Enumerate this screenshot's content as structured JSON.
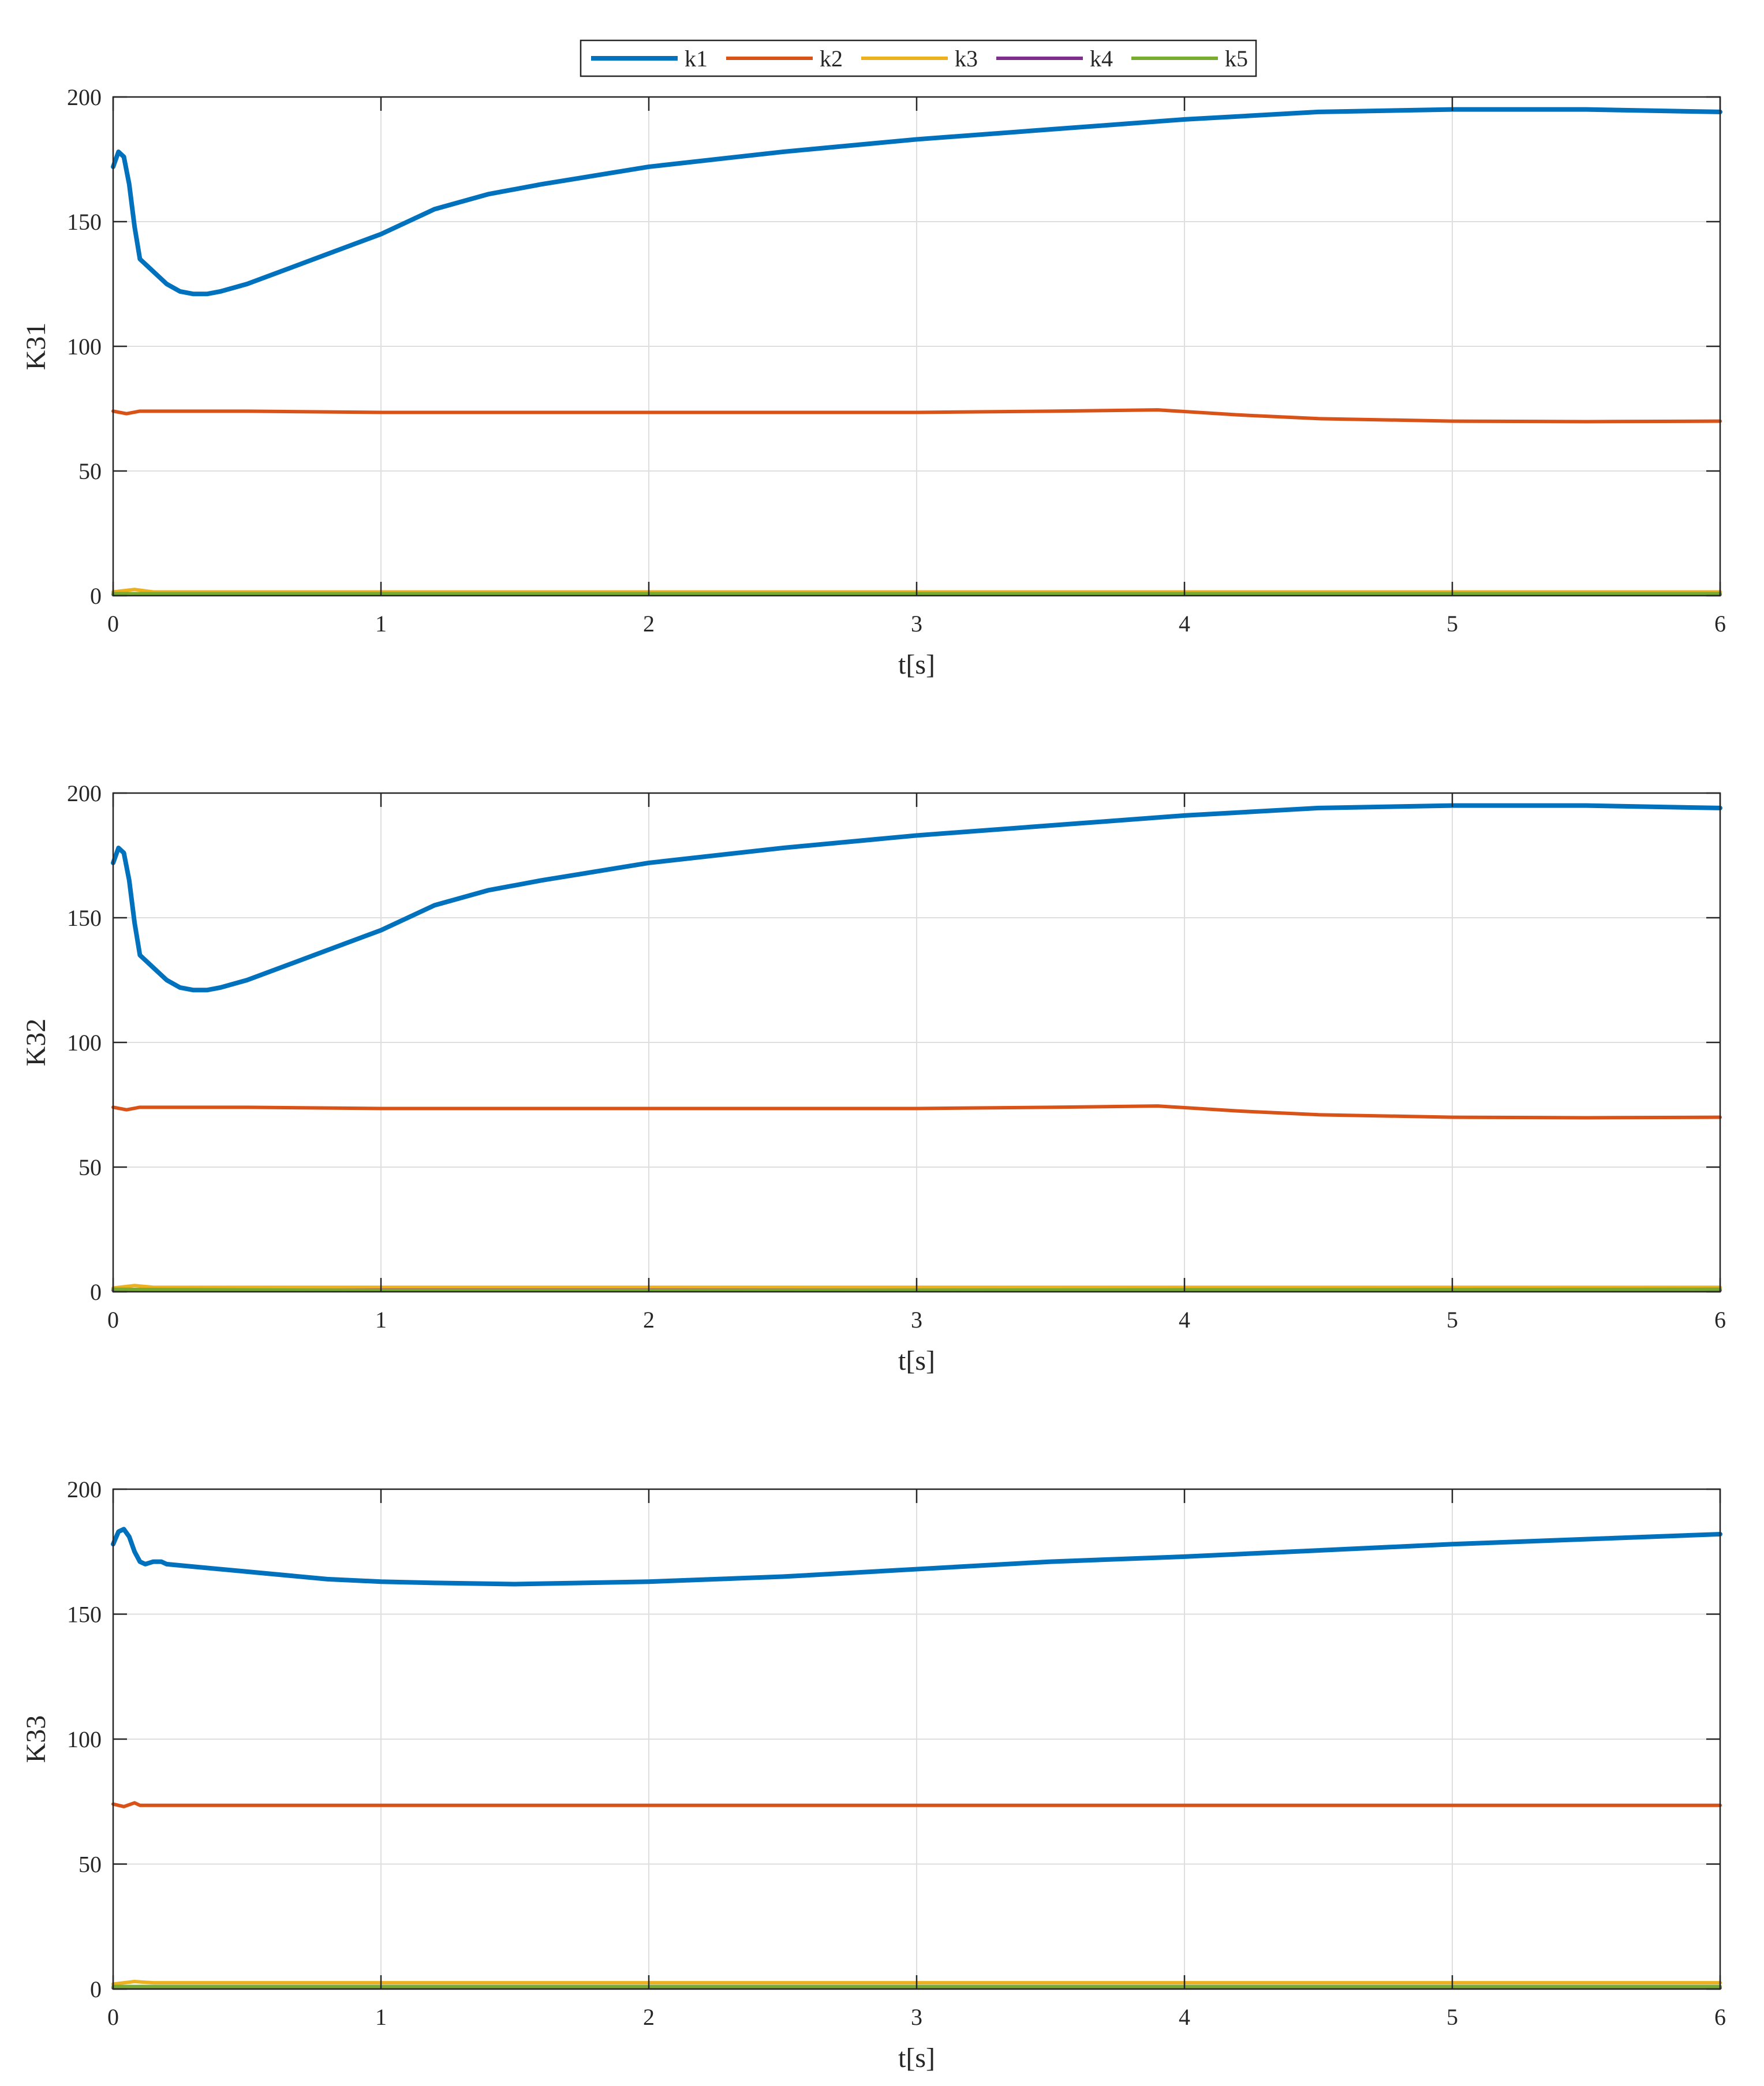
{
  "legend": {
    "entries": [
      {
        "label": "k1",
        "color": "#0072BD"
      },
      {
        "label": "k2",
        "color": "#D95319"
      },
      {
        "label": "k3",
        "color": "#EDB120"
      },
      {
        "label": "k4",
        "color": "#7E2F8E"
      },
      {
        "label": "k5",
        "color": "#77AC30"
      }
    ],
    "placement": "top-center"
  },
  "chart_data": [
    {
      "type": "line",
      "xlabel": "t[s]",
      "ylabel": "K31",
      "xlim": [
        0,
        6
      ],
      "ylim": [
        0,
        200
      ],
      "xticks": [
        "0",
        "1",
        "2",
        "3",
        "4",
        "5",
        "6"
      ],
      "yticks": [
        "0",
        "50",
        "100",
        "150",
        "200"
      ],
      "grid": true,
      "series": [
        {
          "name": "k1",
          "color": "#0072BD",
          "x": [
            0,
            0.02,
            0.04,
            0.06,
            0.08,
            0.1,
            0.15,
            0.2,
            0.25,
            0.3,
            0.35,
            0.4,
            0.5,
            0.6,
            0.8,
            1.0,
            1.1,
            1.2,
            1.4,
            1.6,
            2.0,
            2.5,
            3.0,
            3.5,
            4.0,
            4.5,
            5.0,
            5.5,
            6.0
          ],
          "y": [
            172,
            178,
            176,
            165,
            148,
            135,
            130,
            125,
            122,
            121,
            121,
            122,
            125,
            129,
            137,
            145,
            150,
            155,
            161,
            165,
            172,
            178,
            183,
            187,
            191,
            194,
            195,
            195,
            194
          ]
        },
        {
          "name": "k2",
          "color": "#D95319",
          "x": [
            0,
            0.05,
            0.1,
            0.5,
            1.0,
            2.0,
            3.0,
            3.5,
            3.9,
            4.2,
            4.5,
            5.0,
            5.5,
            6.0
          ],
          "y": [
            74,
            73,
            74,
            74,
            73.5,
            73.5,
            73.5,
            74,
            74.5,
            72.5,
            71,
            70,
            69.8,
            70
          ]
        },
        {
          "name": "k3",
          "color": "#EDB120",
          "x": [
            0,
            0.08,
            0.15,
            1,
            2,
            3,
            4,
            5,
            6
          ],
          "y": [
            1.5,
            2.5,
            1.5,
            1.5,
            1.5,
            1.5,
            1.5,
            1.5,
            1.5
          ]
        },
        {
          "name": "k4",
          "color": "#7E2F8E",
          "x": [
            0,
            1,
            2,
            3,
            4,
            5,
            6
          ],
          "y": [
            0.5,
            0.5,
            0.5,
            0.5,
            0.5,
            0.5,
            0.5
          ]
        },
        {
          "name": "k5",
          "color": "#77AC30",
          "x": [
            0,
            1,
            2,
            3,
            4,
            5,
            6
          ],
          "y": [
            0.8,
            0.8,
            0.8,
            0.8,
            0.8,
            0.8,
            0.8
          ]
        }
      ]
    },
    {
      "type": "line",
      "xlabel": "t[s]",
      "ylabel": "K32",
      "xlim": [
        0,
        6
      ],
      "ylim": [
        0,
        200
      ],
      "xticks": [
        "0",
        "1",
        "2",
        "3",
        "4",
        "5",
        "6"
      ],
      "yticks": [
        "0",
        "50",
        "100",
        "150",
        "200"
      ],
      "grid": true,
      "series": [
        {
          "name": "k1",
          "color": "#0072BD",
          "x": [
            0,
            0.02,
            0.04,
            0.06,
            0.08,
            0.1,
            0.15,
            0.2,
            0.25,
            0.3,
            0.35,
            0.4,
            0.5,
            0.6,
            0.8,
            1.0,
            1.1,
            1.2,
            1.4,
            1.6,
            2.0,
            2.5,
            3.0,
            3.5,
            4.0,
            4.5,
            5.0,
            5.5,
            6.0
          ],
          "y": [
            172,
            178,
            176,
            165,
            148,
            135,
            130,
            125,
            122,
            121,
            121,
            122,
            125,
            129,
            137,
            145,
            150,
            155,
            161,
            165,
            172,
            178,
            183,
            187,
            191,
            194,
            195,
            195,
            194
          ]
        },
        {
          "name": "k2",
          "color": "#D95319",
          "x": [
            0,
            0.05,
            0.1,
            0.5,
            1.0,
            2.0,
            3.0,
            3.5,
            3.9,
            4.2,
            4.5,
            5.0,
            5.5,
            6.0
          ],
          "y": [
            74,
            73,
            74,
            74,
            73.5,
            73.5,
            73.5,
            74,
            74.5,
            72.5,
            71,
            70,
            69.8,
            70
          ]
        },
        {
          "name": "k3",
          "color": "#EDB120",
          "x": [
            0,
            0.08,
            0.15,
            1,
            2,
            3,
            4,
            5,
            6
          ],
          "y": [
            1.5,
            2.5,
            1.8,
            1.8,
            1.8,
            1.8,
            1.8,
            1.8,
            1.8
          ]
        },
        {
          "name": "k4",
          "color": "#7E2F8E",
          "x": [
            0,
            1,
            2,
            3,
            4,
            5,
            6
          ],
          "y": [
            0.6,
            0.6,
            0.6,
            0.6,
            0.6,
            0.6,
            0.6
          ]
        },
        {
          "name": "k5",
          "color": "#77AC30",
          "x": [
            0,
            1,
            2,
            3,
            4,
            5,
            6
          ],
          "y": [
            1.0,
            0.5,
            0.5,
            0.6,
            0.8,
            0.9,
            1.0
          ]
        }
      ]
    },
    {
      "type": "line",
      "xlabel": "t[s]",
      "ylabel": "K33",
      "xlim": [
        0,
        6
      ],
      "ylim": [
        0,
        200
      ],
      "xticks": [
        "0",
        "1",
        "2",
        "3",
        "4",
        "5",
        "6"
      ],
      "yticks": [
        "0",
        "50",
        "100",
        "150",
        "200"
      ],
      "grid": true,
      "series": [
        {
          "name": "k1",
          "color": "#0072BD",
          "x": [
            0,
            0.02,
            0.04,
            0.06,
            0.08,
            0.1,
            0.12,
            0.15,
            0.18,
            0.2,
            0.3,
            0.5,
            0.8,
            1.0,
            1.2,
            1.5,
            2.0,
            2.5,
            3.0,
            3.5,
            4.0,
            4.5,
            5.0,
            5.5,
            6.0
          ],
          "y": [
            178,
            183,
            184,
            181,
            175,
            171,
            170,
            171,
            171,
            170,
            169,
            167,
            164,
            163,
            162.5,
            162,
            163,
            165,
            168,
            171,
            173,
            175.5,
            178,
            180,
            182
          ]
        },
        {
          "name": "k2",
          "color": "#D95319",
          "x": [
            0,
            0.04,
            0.08,
            0.1,
            0.15,
            1,
            2,
            3,
            4,
            5,
            6
          ],
          "y": [
            74,
            73,
            74.5,
            73.5,
            73.5,
            73.5,
            73.5,
            73.5,
            73.5,
            73.5,
            73.5
          ]
        },
        {
          "name": "k3",
          "color": "#EDB120",
          "x": [
            0,
            0.08,
            0.15,
            1,
            2,
            3,
            4,
            5,
            6
          ],
          "y": [
            2.0,
            3.0,
            2.5,
            2.5,
            2.5,
            2.5,
            2.5,
            2.5,
            2.5
          ]
        },
        {
          "name": "k4",
          "color": "#7E2F8E",
          "x": [
            0,
            1,
            2,
            3,
            4,
            5,
            6
          ],
          "y": [
            0.5,
            0.5,
            0.5,
            0.5,
            0.5,
            0.5,
            0.5
          ]
        },
        {
          "name": "k5",
          "color": "#77AC30",
          "x": [
            0,
            1,
            2,
            3,
            4,
            5,
            6
          ],
          "y": [
            1.0,
            1.0,
            1.0,
            1.0,
            1.0,
            1.0,
            1.0
          ]
        }
      ]
    }
  ]
}
